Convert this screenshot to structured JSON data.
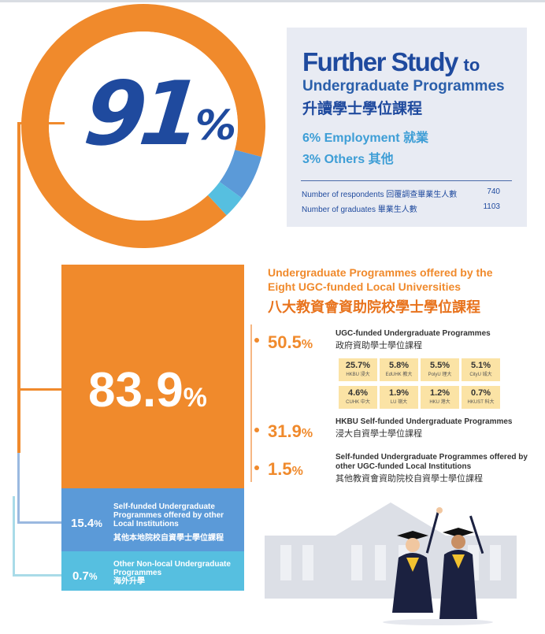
{
  "donut": {
    "headline_number": "91",
    "headline_symbol": "%"
  },
  "chart_data": [
    {
      "type": "pie",
      "categories": [
        "Further Study to Undergraduate Programmes",
        "Employment",
        "Others"
      ],
      "values": [
        91,
        6,
        3
      ],
      "colors": [
        "#f08a2c",
        "#5b9ad8",
        "#56bfe0"
      ]
    },
    {
      "type": "bar",
      "categories": [
        "UGC-funded Undergraduate Programmes",
        "HKBU Self-funded Undergraduate Programmes",
        "Self-funded Undergraduate Programmes offered by other UGC-funded Local Institutions"
      ],
      "values": [
        50.5,
        31.9,
        1.5
      ]
    },
    {
      "type": "table",
      "categories": [
        "HKBU 浸大",
        "EdUHK 教大",
        "PolyU 理大",
        "CityU 城大",
        "CUHK 中大",
        "LU 嶺大",
        "HKU 港大",
        "HKUST 科大"
      ],
      "values": [
        25.7,
        5.8,
        5.5,
        5.1,
        4.6,
        1.9,
        1.2,
        0.7
      ]
    }
  ],
  "info": {
    "title_main": "Further Study",
    "title_to": "to",
    "title_sub": "Undergraduate Programmes",
    "title_zh": "升讀學士學位課程",
    "employment": "6% Employment 就業",
    "others": "3% Others 其他",
    "respondents_label": "Number of respondents 回覆調查畢業生人數",
    "respondents_value": "740",
    "graduates_label": "Number of graduates 畢業生人數",
    "graduates_value": "1103"
  },
  "blocks": {
    "local_pct": "83.9",
    "local_pct_symbol": "%",
    "selffunded_pct": "15.4",
    "selffunded_pct_symbol": "%",
    "selffunded_text_en": "Self-funded Undergraduate Programmes offered by other Local Institutions",
    "selffunded_text_zh": "其他本地院校自資學士學位課程",
    "nonlocal_pct": "0.7",
    "nonlocal_pct_symbol": "%",
    "nonlocal_text_en": "Other Non-local Undergraduate Programmes",
    "nonlocal_text_zh": "海外升學"
  },
  "ugc": {
    "title_en": "Undergraduate Programmes offered by the Eight UGC-funded Local Universities",
    "title_zh": "八大教資會資助院校學士學位課程",
    "items": [
      {
        "pct": "50.5",
        "symbol": "%",
        "en": "UGC-funded Undergraduate Programmes",
        "zh": "政府資助學士學位課程"
      },
      {
        "pct": "31.9",
        "symbol": "%",
        "en": "HKBU Self-funded Undergraduate Programmes",
        "zh": "浸大自資學士學位課程"
      },
      {
        "pct": "1.5",
        "symbol": "%",
        "en": "Self-funded Undergraduate Programmes offered by other UGC-funded Local Institutions",
        "zh": "其他教資會資助院校自資學士學位課程"
      }
    ],
    "grid": [
      {
        "v": "25.7%",
        "n": "HKBU 浸大"
      },
      {
        "v": "5.8%",
        "n": "EdUHK 教大"
      },
      {
        "v": "5.5%",
        "n": "PolyU 理大"
      },
      {
        "v": "5.1%",
        "n": "CityU 城大"
      },
      {
        "v": "4.6%",
        "n": "CUHK 中大"
      },
      {
        "v": "1.9%",
        "n": "LU 嶺大"
      },
      {
        "v": "1.2%",
        "n": "HKU 港大"
      },
      {
        "v": "0.7%",
        "n": "HKUST 科大"
      }
    ]
  }
}
